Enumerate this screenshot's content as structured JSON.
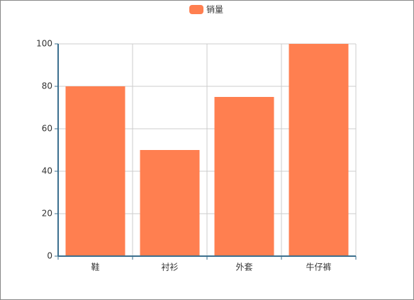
{
  "chart_data": {
    "type": "bar",
    "legend": "销量",
    "legend_position": "top",
    "categories": [
      "鞋",
      "衬衫",
      "外套",
      "牛仔裤"
    ],
    "values": [
      80,
      50,
      75,
      100
    ],
    "color": "#ff7f50",
    "ylim": [
      0,
      100
    ],
    "yticks": [
      0,
      20,
      40,
      60,
      80,
      100
    ],
    "grid": true
  }
}
